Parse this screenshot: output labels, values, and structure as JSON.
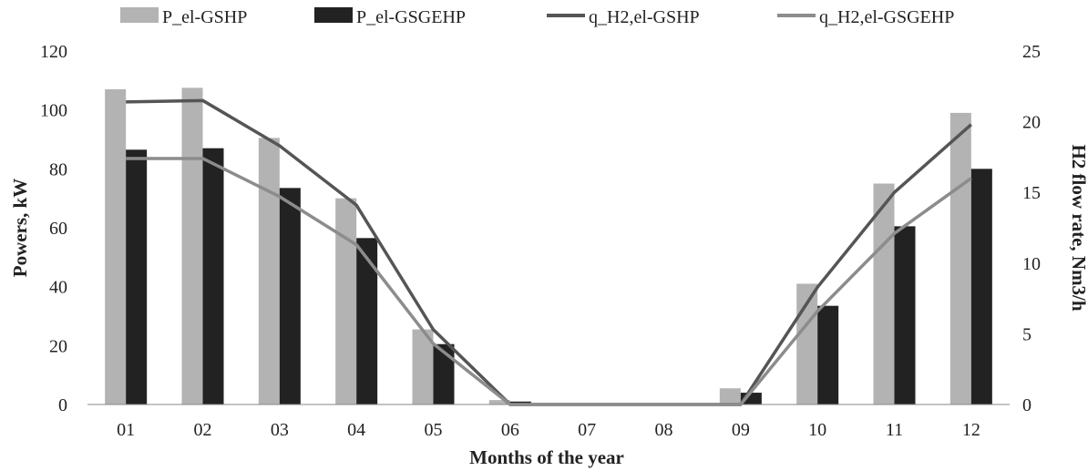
{
  "chart_data": {
    "type": "bar",
    "title": "",
    "xlabel": "Months of the year",
    "ylabel": "Powers, kW",
    "y2label": "H2 flow rate, Nm3/h",
    "ylim": [
      0,
      120
    ],
    "y2lim": [
      0,
      25
    ],
    "yticks": [
      "0",
      "20",
      "40",
      "60",
      "80",
      "100",
      "120"
    ],
    "y2ticks": [
      "0",
      "5",
      "10",
      "15",
      "20",
      "25"
    ],
    "grid": false,
    "legend_position": "top",
    "categories": [
      "01",
      "02",
      "03",
      "04",
      "05",
      "06",
      "07",
      "08",
      "09",
      "10",
      "11",
      "12"
    ],
    "series": [
      {
        "name": "P_el-GSHP",
        "kind": "bar",
        "axis": "left",
        "color": "#b3b3b3",
        "values": [
          107,
          107.5,
          90.5,
          70,
          25.5,
          1.5,
          0,
          0,
          5.5,
          41,
          75,
          99
        ]
      },
      {
        "name": "P_el-GSGEHP",
        "kind": "bar",
        "axis": "left",
        "color": "#222222",
        "values": [
          86.5,
          87,
          73.5,
          56.5,
          20.5,
          1,
          0,
          0,
          4,
          33.5,
          60.5,
          80
        ]
      },
      {
        "name": "q_H2,el-GSHP",
        "kind": "line",
        "axis": "right",
        "color": "#555555",
        "values": [
          21.4,
          21.5,
          18.3,
          14.1,
          5.3,
          0,
          0,
          0,
          0,
          8.3,
          15,
          19.8
        ]
      },
      {
        "name": "q_H2,el-GSGEHP",
        "kind": "line",
        "axis": "right",
        "color": "#8c8c8c",
        "values": [
          17.4,
          17.4,
          14.7,
          11.3,
          4.3,
          0,
          0,
          0,
          0,
          6.6,
          12.1,
          16
        ]
      }
    ]
  }
}
